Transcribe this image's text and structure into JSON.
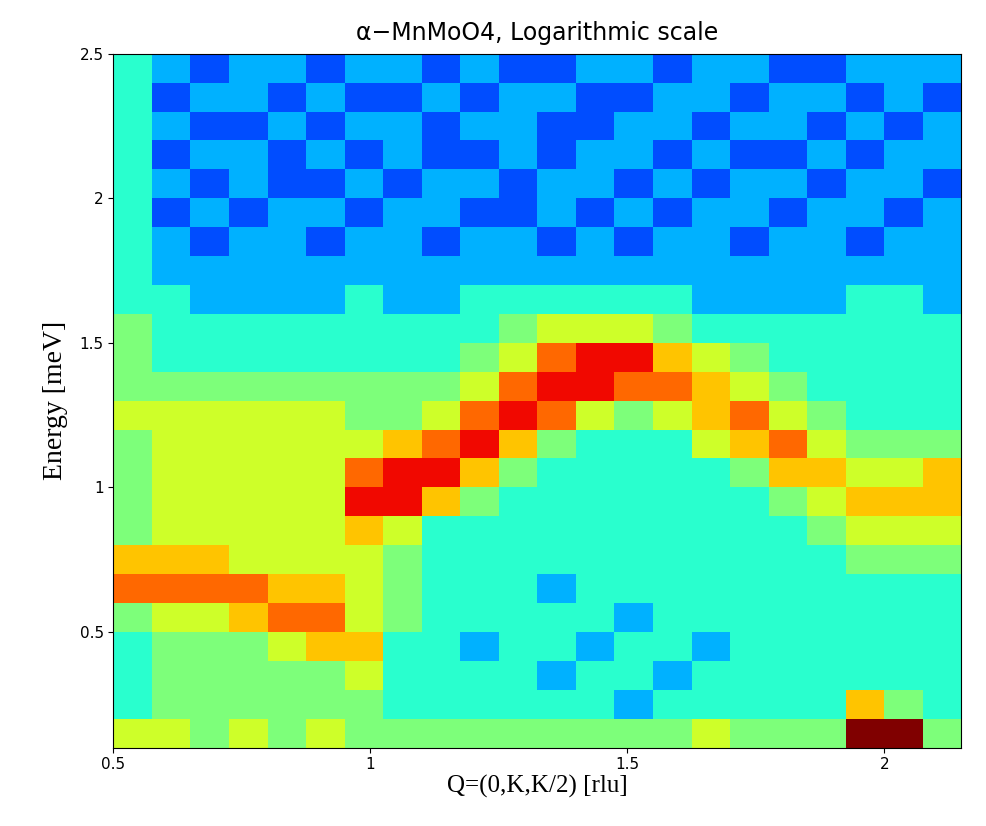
{
  "chart_data": {
    "type": "heatmap",
    "title": "α−MnMoO4, Logarithmic scale",
    "x_label": "Q=(0,K,K/2) [rlu]",
    "y_label": "Energy [meV]",
    "xlim": [
      0.5,
      2.15
    ],
    "ylim": [
      0.1,
      2.5
    ],
    "xticks": [
      0.5,
      1,
      1.5,
      2
    ],
    "yticks": [
      0.5,
      1,
      1.5,
      2,
      2.5
    ],
    "color": "jet",
    "x_edges": [
      0.5,
      0.575,
      0.65,
      0.725,
      0.8,
      0.875,
      0.95,
      1.025,
      1.1,
      1.175,
      1.25,
      1.325,
      1.4,
      1.475,
      1.55,
      1.625,
      1.7,
      1.775,
      1.85,
      1.925,
      2.0,
      2.075,
      2.15
    ],
    "y_edges": [
      0.1,
      0.2,
      0.3,
      0.4,
      0.5,
      0.6,
      0.7,
      0.8,
      0.9,
      1.0,
      1.1,
      1.2,
      1.3,
      1.4,
      1.5,
      1.6,
      1.7,
      1.8,
      1.9,
      2.0,
      2.1,
      2.2,
      2.3,
      2.4,
      2.5
    ],
    "zlim": [
      0,
      10
    ],
    "cells": [
      [
        6,
        6,
        5,
        6,
        5,
        6,
        5,
        5,
        5,
        5,
        5,
        5,
        5,
        5,
        5,
        6,
        5,
        5,
        5,
        10,
        10,
        5
      ],
      [
        4,
        5,
        5,
        5,
        5,
        5,
        5,
        4,
        4,
        4,
        4,
        4,
        4,
        3,
        4,
        4,
        4,
        4,
        4,
        7,
        5,
        4
      ],
      [
        4,
        5,
        5,
        5,
        5,
        5,
        6,
        4,
        4,
        4,
        4,
        3,
        4,
        4,
        3,
        4,
        4,
        4,
        4,
        4,
        4,
        4
      ],
      [
        4,
        5,
        5,
        5,
        6,
        7,
        7,
        4,
        4,
        3,
        4,
        4,
        3,
        4,
        4,
        3,
        4,
        4,
        4,
        4,
        4,
        4
      ],
      [
        5,
        6,
        6,
        7,
        8,
        8,
        6,
        5,
        4,
        4,
        4,
        4,
        4,
        3,
        4,
        4,
        4,
        4,
        4,
        4,
        4,
        4
      ],
      [
        8,
        8,
        8,
        8,
        7,
        7,
        6,
        5,
        4,
        4,
        4,
        3,
        4,
        4,
        4,
        4,
        4,
        4,
        4,
        4,
        4,
        4
      ],
      [
        7,
        7,
        7,
        6,
        6,
        6,
        6,
        5,
        4,
        4,
        4,
        4,
        4,
        4,
        4,
        4,
        4,
        4,
        4,
        5,
        5,
        5
      ],
      [
        5,
        6,
        6,
        6,
        6,
        6,
        7,
        6,
        4,
        4,
        4,
        4,
        4,
        4,
        4,
        4,
        4,
        4,
        5,
        6,
        6,
        6
      ],
      [
        5,
        6,
        6,
        6,
        6,
        6,
        9,
        9,
        7,
        5,
        4,
        4,
        4,
        4,
        4,
        4,
        4,
        5,
        6,
        7,
        7,
        7
      ],
      [
        5,
        6,
        6,
        6,
        6,
        6,
        8,
        9,
        9,
        7,
        5,
        4,
        4,
        4,
        4,
        4,
        5,
        7,
        7,
        6,
        6,
        7
      ],
      [
        5,
        6,
        6,
        6,
        6,
        6,
        6,
        7,
        8,
        9,
        7,
        5,
        4,
        4,
        4,
        6,
        7,
        8,
        6,
        5,
        5,
        5
      ],
      [
        6,
        6,
        6,
        6,
        6,
        6,
        5,
        5,
        6,
        8,
        9,
        8,
        6,
        5,
        6,
        7,
        8,
        6,
        5,
        4,
        4,
        4
      ],
      [
        5,
        5,
        5,
        5,
        5,
        5,
        5,
        5,
        5,
        6,
        8,
        9,
        9,
        8,
        8,
        7,
        6,
        5,
        4,
        4,
        4,
        4
      ],
      [
        5,
        4,
        4,
        4,
        4,
        4,
        4,
        4,
        4,
        5,
        6,
        8,
        9,
        9,
        7,
        6,
        5,
        4,
        4,
        4,
        4,
        4
      ],
      [
        5,
        4,
        4,
        4,
        4,
        4,
        4,
        4,
        4,
        4,
        5,
        6,
        6,
        6,
        5,
        4,
        4,
        4,
        4,
        4,
        4,
        4
      ],
      [
        4,
        4,
        3,
        3,
        3,
        3,
        4,
        3,
        3,
        4,
        4,
        4,
        4,
        4,
        4,
        3,
        3,
        3,
        3,
        4,
        4,
        3
      ],
      [
        4,
        3,
        3,
        3,
        3,
        3,
        3,
        3,
        3,
        3,
        3,
        3,
        3,
        3,
        3,
        3,
        3,
        3,
        3,
        3,
        3,
        3
      ],
      [
        4,
        3,
        2,
        3,
        3,
        2,
        3,
        3,
        2,
        3,
        3,
        2,
        3,
        2,
        3,
        3,
        2,
        3,
        3,
        2,
        3,
        3
      ],
      [
        4,
        2,
        3,
        2,
        3,
        3,
        2,
        3,
        3,
        2,
        2,
        3,
        2,
        3,
        2,
        3,
        3,
        2,
        3,
        3,
        2,
        3
      ],
      [
        4,
        3,
        2,
        3,
        2,
        2,
        3,
        2,
        3,
        3,
        2,
        3,
        3,
        2,
        3,
        2,
        3,
        3,
        2,
        3,
        3,
        2
      ],
      [
        4,
        2,
        3,
        3,
        2,
        3,
        2,
        3,
        2,
        2,
        3,
        2,
        3,
        3,
        2,
        3,
        2,
        2,
        3,
        2,
        3,
        3
      ],
      [
        4,
        3,
        2,
        2,
        3,
        2,
        3,
        3,
        2,
        3,
        3,
        2,
        2,
        3,
        3,
        2,
        3,
        3,
        2,
        3,
        2,
        3
      ],
      [
        4,
        2,
        3,
        3,
        2,
        3,
        2,
        2,
        3,
        2,
        3,
        3,
        2,
        2,
        3,
        3,
        2,
        3,
        3,
        2,
        3,
        2
      ],
      [
        4,
        3,
        2,
        3,
        3,
        2,
        3,
        3,
        2,
        3,
        2,
        2,
        3,
        3,
        2,
        3,
        3,
        2,
        2,
        3,
        3,
        3
      ]
    ]
  }
}
